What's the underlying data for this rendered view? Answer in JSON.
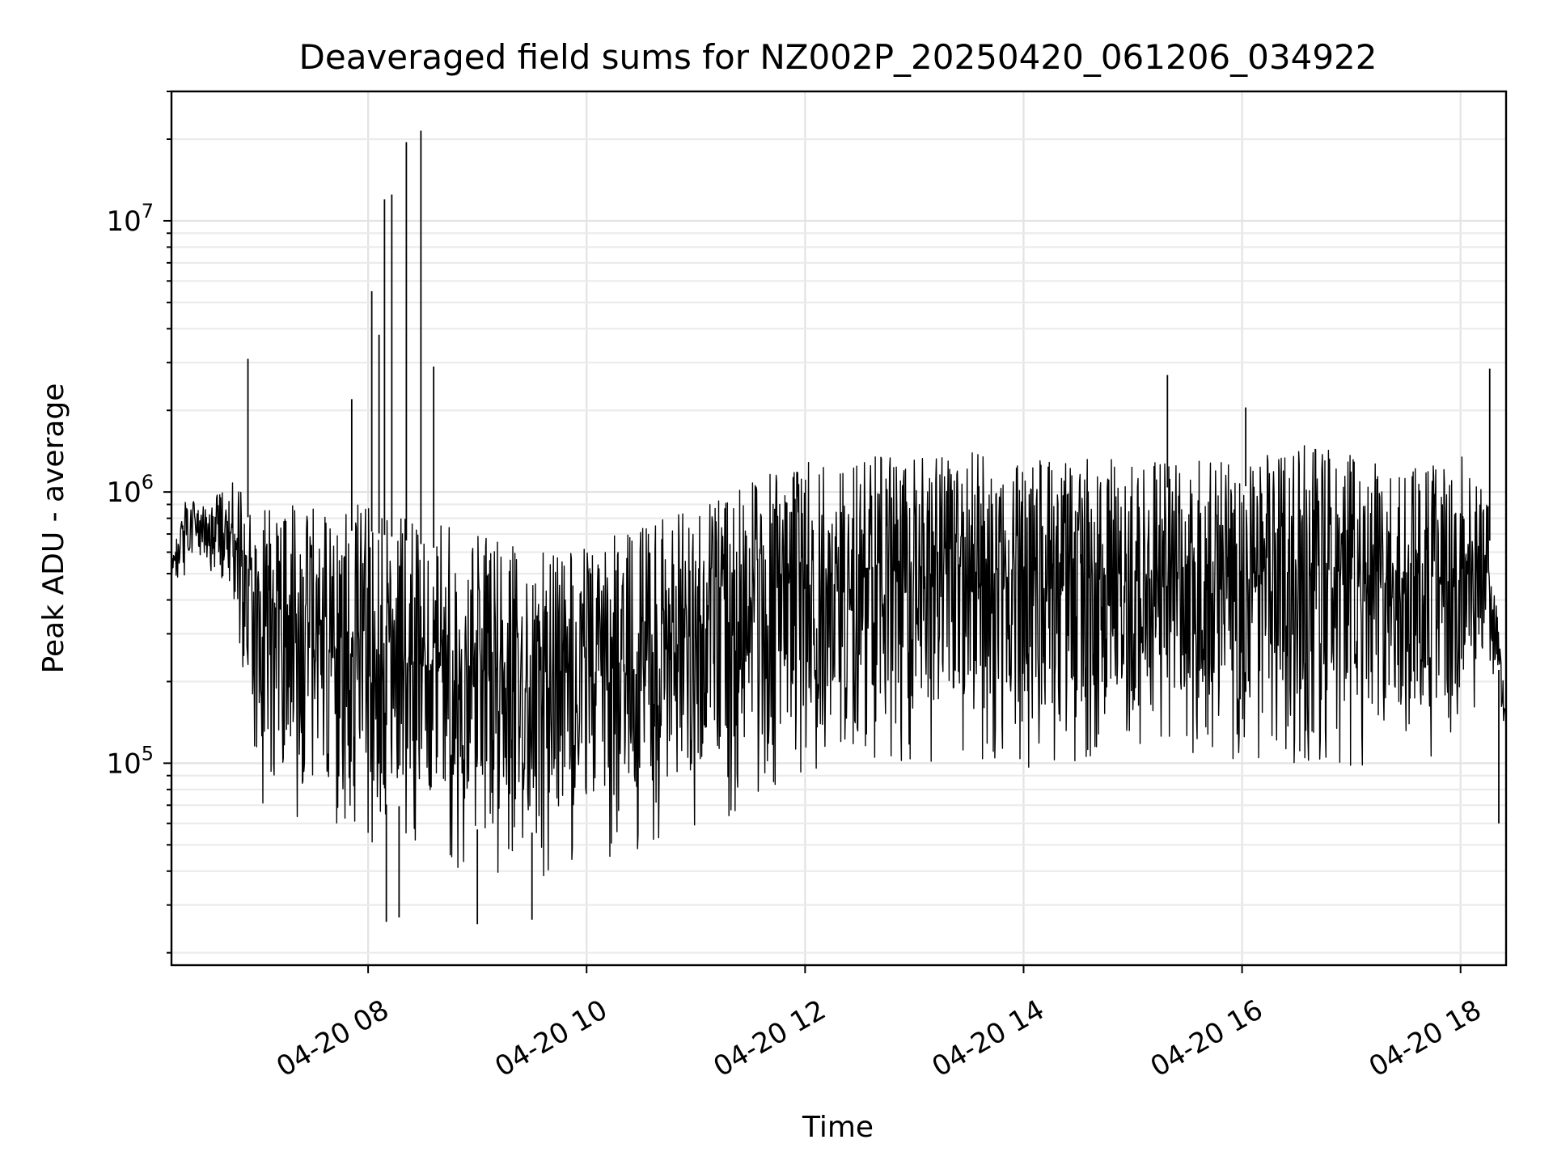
{
  "chart_data": {
    "type": "line",
    "title": "Deaveraged field sums for NZ002P_20250420_061206_034922",
    "xlabel": "Time",
    "ylabel": "Peak ADU - average",
    "y_scale": "log",
    "grid": true,
    "ylim": [
      18000,
      30000000
    ],
    "xlim": [
      "2025-04-20 06:12",
      "2025-04-20 18:25"
    ],
    "x_ticks": [
      "2025-04-20 08:00",
      "2025-04-20 10:00",
      "2025-04-20 12:00",
      "2025-04-20 14:00",
      "2025-04-20 16:00",
      "2025-04-20 18:00"
    ],
    "x_tick_labels": [
      "04-20 08",
      "04-20 10",
      "04-20 12",
      "04-20 14",
      "04-20 16",
      "04-20 18"
    ],
    "y_ticks": [
      100000,
      1000000,
      10000000
    ],
    "y_tick_labels": [
      {
        "base": "10",
        "exp": "5"
      },
      {
        "base": "10",
        "exp": "6"
      },
      {
        "base": "10",
        "exp": "7"
      }
    ],
    "series": [
      {
        "color": "#000000",
        "envelope": {
          "x": [
            "2025-04-20 06:12",
            "2025-04-20 06:20",
            "2025-04-20 06:30",
            "2025-04-20 06:45",
            "2025-04-20 06:55",
            "2025-04-20 07:00",
            "2025-04-20 07:30",
            "2025-04-20 08:00",
            "2025-04-20 08:30",
            "2025-04-20 09:00",
            "2025-04-20 09:30",
            "2025-04-20 10:00",
            "2025-04-20 10:30",
            "2025-04-20 11:00",
            "2025-04-20 11:30",
            "2025-04-20 12:00",
            "2025-04-20 12:30",
            "2025-04-20 13:00",
            "2025-04-20 13:30",
            "2025-04-20 14:00",
            "2025-04-20 14:30",
            "2025-04-20 15:00",
            "2025-04-20 15:30",
            "2025-04-20 16:00",
            "2025-04-20 16:30",
            "2025-04-20 17:00",
            "2025-04-20 17:30",
            "2025-04-20 18:00",
            "2025-04-20 18:15",
            "2025-04-20 18:25"
          ],
          "low": [
            450000,
            500000,
            550000,
            400000,
            150000,
            50000,
            48000,
            48000,
            45000,
            38000,
            37000,
            40000,
            45000,
            55000,
            70000,
            90000,
            100000,
            95000,
            100000,
            95000,
            100000,
            110000,
            110000,
            100000,
            100000,
            90000,
            100000,
            110000,
            200000,
            120000
          ],
          "high": [
            550000,
            1000000,
            900000,
            1100000,
            1000000,
            900000,
            900000,
            900000,
            800000,
            700000,
            650000,
            700000,
            750000,
            900000,
            1100000,
            1300000,
            1350000,
            1350000,
            1400000,
            1400000,
            1350000,
            1300000,
            1300000,
            1300000,
            1500000,
            1400000,
            1200000,
            1400000,
            1000000,
            150000
          ]
        },
        "spikes": [
          {
            "x": "2025-04-20 06:54",
            "y": 3100000
          },
          {
            "x": "2025-04-20 07:51",
            "y": 2200000
          },
          {
            "x": "2025-04-20 08:02",
            "y": 5500000
          },
          {
            "x": "2025-04-20 08:06",
            "y": 3800000
          },
          {
            "x": "2025-04-20 08:09",
            "y": 12000000
          },
          {
            "x": "2025-04-20 08:13",
            "y": 12500000
          },
          {
            "x": "2025-04-20 08:21",
            "y": 19500000
          },
          {
            "x": "2025-04-20 08:29",
            "y": 21500000
          },
          {
            "x": "2025-04-20 08:36",
            "y": 2900000
          },
          {
            "x": "2025-04-20 15:19",
            "y": 2700000
          },
          {
            "x": "2025-04-20 16:02",
            "y": 2050000
          },
          {
            "x": "2025-04-20 18:16",
            "y": 2850000
          }
        ],
        "dips": [
          {
            "x": "2025-04-20 08:10",
            "y": 26000
          },
          {
            "x": "2025-04-20 08:17",
            "y": 27000
          },
          {
            "x": "2025-04-20 09:00",
            "y": 25500
          },
          {
            "x": "2025-04-20 09:30",
            "y": 26500
          },
          {
            "x": "2025-04-20 18:21",
            "y": 60000
          }
        ]
      }
    ]
  }
}
